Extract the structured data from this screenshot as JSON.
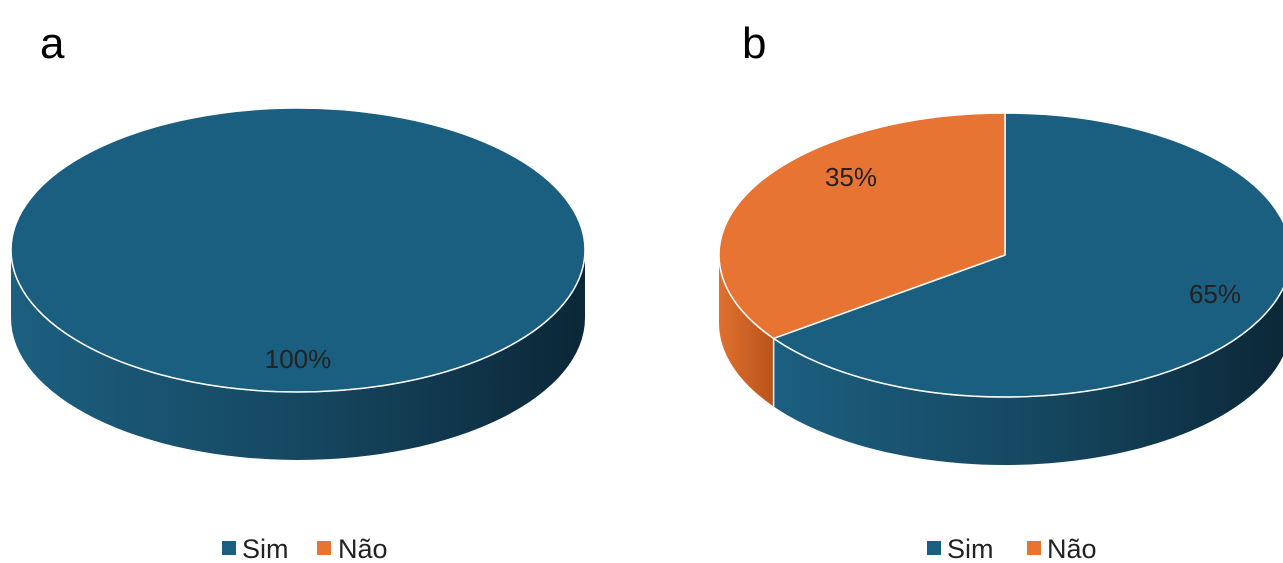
{
  "panels": [
    {
      "letter": "a"
    },
    {
      "letter": "b"
    }
  ],
  "colors": {
    "sim": "#1a5e80",
    "nao": "#e87434"
  },
  "chart_data": [
    {
      "type": "pie",
      "style": "3d",
      "panel": "a",
      "categories": [
        "Sim",
        "Não"
      ],
      "values": [
        100,
        0
      ],
      "data_labels": [
        "100%",
        ""
      ],
      "legend": [
        "Sim",
        "Não"
      ],
      "legend_placement": "bottom"
    },
    {
      "type": "pie",
      "style": "3d",
      "panel": "b",
      "categories": [
        "Sim",
        "Não"
      ],
      "values": [
        65,
        35
      ],
      "data_labels": [
        "65%",
        "35%"
      ],
      "legend": [
        "Sim",
        "Não"
      ],
      "legend_placement": "bottom"
    }
  ]
}
